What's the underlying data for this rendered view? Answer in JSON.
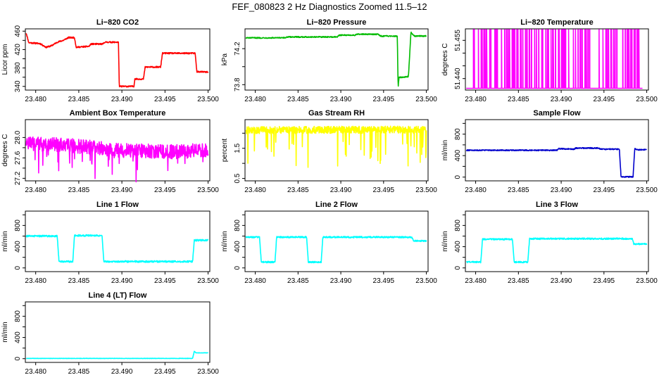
{
  "figure": {
    "title": "FEF_080823  2 Hz Diagnostics Zoomed 11.5–12"
  },
  "x_axis": {
    "ticks": [
      23.48,
      23.485,
      23.49,
      23.495,
      23.5
    ],
    "tick_labels": [
      "23.480",
      "23.485",
      "23.490",
      "23.495",
      "23.500"
    ],
    "xlim": [
      23.4788,
      23.5002
    ]
  },
  "chart_data": [
    {
      "type": "line",
      "title": "Li−820 CO2",
      "ylabel": "Licor ppm",
      "color": "#ff0000",
      "ylim": [
        332,
        465
      ],
      "y_ticks": [
        340,
        360,
        380,
        400,
        420,
        440,
        460
      ],
      "y_tick_labels": [
        "340",
        "",
        "380",
        "",
        "420",
        "",
        "460"
      ],
      "noise": 1.5,
      "points": [
        [
          23.4789,
          456
        ],
        [
          23.4792,
          435
        ],
        [
          23.4805,
          433
        ],
        [
          23.4812,
          425
        ],
        [
          23.4818,
          428
        ],
        [
          23.4825,
          436
        ],
        [
          23.4832,
          440
        ],
        [
          23.4838,
          446
        ],
        [
          23.4845,
          446
        ],
        [
          23.4847,
          425
        ],
        [
          23.4862,
          427
        ],
        [
          23.4864,
          432
        ],
        [
          23.4878,
          432
        ],
        [
          23.488,
          436
        ],
        [
          23.4896,
          436
        ],
        [
          23.4897,
          340
        ],
        [
          23.4914,
          340
        ],
        [
          23.4915,
          356
        ],
        [
          23.4925,
          356
        ],
        [
          23.4927,
          382
        ],
        [
          23.4945,
          382
        ],
        [
          23.4947,
          412
        ],
        [
          23.497,
          412
        ],
        [
          23.4985,
          412
        ],
        [
          23.4987,
          372
        ],
        [
          23.5,
          371
        ]
      ]
    },
    {
      "type": "line",
      "title": "Li−820 Pressure",
      "ylabel": "kPa",
      "color": "#00bb00",
      "ylim": [
        73.74,
        74.42
      ],
      "y_ticks": [
        73.8,
        74.0,
        74.2
      ],
      "y_tick_labels": [
        "73.8",
        "",
        "74.2"
      ],
      "noise": 0.006,
      "points": [
        [
          23.4789,
          74.32
        ],
        [
          23.4835,
          74.32
        ],
        [
          23.4837,
          74.33
        ],
        [
          23.4896,
          74.33
        ],
        [
          23.4898,
          74.35
        ],
        [
          23.4917,
          74.35
        ],
        [
          23.4919,
          74.36
        ],
        [
          23.4944,
          74.36
        ],
        [
          23.4946,
          74.34
        ],
        [
          23.4966,
          74.34
        ],
        [
          23.4967,
          73.77
        ],
        [
          23.4968,
          73.88
        ],
        [
          23.4979,
          73.89
        ],
        [
          23.4982,
          74.38
        ],
        [
          23.4986,
          74.34
        ],
        [
          23.5,
          74.34
        ]
      ]
    },
    {
      "type": "line",
      "title": "Li−820 Temperature",
      "ylabel": "degrees C",
      "color": "#ff00ff",
      "ylim": [
        51.4355,
        51.4595
      ],
      "y_ticks": [
        51.44,
        51.445,
        51.45,
        51.455
      ],
      "y_tick_labels": [
        "51.440",
        "",
        "",
        "51.455"
      ],
      "noise": 0,
      "points": [
        [
          23.4789,
          51.4362
        ]
      ],
      "spikes": {
        "count": 110,
        "low": 51.4362,
        "high": 51.4592,
        "seed": 31
      }
    },
    {
      "type": "line",
      "title": "Ambient Box Temperature",
      "ylabel": "degrees C",
      "color": "#ff00ff",
      "ylim": [
        27.15,
        28.35
      ],
      "y_ticks": [
        27.2,
        27.4,
        27.6,
        27.8,
        28.0
      ],
      "y_tick_labels": [
        "27.2",
        "",
        "27.6",
        "",
        "28.0"
      ],
      "noise": 0.14,
      "points": [
        [
          23.4789,
          27.88
        ],
        [
          23.4835,
          27.85
        ],
        [
          23.49,
          27.75
        ],
        [
          23.4955,
          27.72
        ],
        [
          23.5,
          27.75
        ]
      ],
      "dips": {
        "count": 30,
        "depth": 0.5,
        "seed": 7
      }
    },
    {
      "type": "line",
      "title": "Gas Stream RH",
      "ylabel": "percent",
      "color": "#ffff00",
      "ylim": [
        0.42,
        2.45
      ],
      "y_ticks": [
        0.5,
        1.0,
        1.5,
        2.0
      ],
      "y_tick_labels": [
        "0.5",
        "",
        "1.5",
        ""
      ],
      "noise": 0.12,
      "points": [
        [
          23.4789,
          2.1
        ],
        [
          23.5,
          2.12
        ]
      ],
      "dips": {
        "count": 40,
        "depth": 1.2,
        "seed": 13
      }
    },
    {
      "type": "line",
      "title": "Sample Flow",
      "ylabel": "ml/min",
      "color": "#0000cc",
      "ylim": [
        -70,
        1070
      ],
      "y_ticks": [
        0,
        200,
        400,
        600,
        800,
        1000
      ],
      "y_tick_labels": [
        "0",
        "",
        "400",
        "",
        "800",
        ""
      ],
      "noise": 10,
      "points": [
        [
          23.4789,
          500
        ],
        [
          23.4895,
          500
        ],
        [
          23.4897,
          530
        ],
        [
          23.4915,
          520
        ],
        [
          23.4917,
          540
        ],
        [
          23.4944,
          540
        ],
        [
          23.4946,
          520
        ],
        [
          23.4968,
          520
        ],
        [
          23.497,
          5
        ],
        [
          23.4984,
          5
        ],
        [
          23.4986,
          530
        ],
        [
          23.4988,
          510
        ],
        [
          23.5,
          510
        ]
      ]
    },
    {
      "type": "line",
      "title": "Line 1 Flow",
      "ylabel": "ml/min",
      "color": "#00ffff",
      "ylim": [
        -70,
        1070
      ],
      "y_ticks": [
        0,
        200,
        400,
        600,
        800,
        1000
      ],
      "y_tick_labels": [
        "0",
        "",
        "400",
        "",
        "800",
        ""
      ],
      "noise": 16,
      "points": [
        [
          23.4789,
          600
        ],
        [
          23.4825,
          600
        ],
        [
          23.4827,
          120
        ],
        [
          23.4843,
          120
        ],
        [
          23.4845,
          610
        ],
        [
          23.4877,
          610
        ],
        [
          23.4879,
          120
        ],
        [
          23.4982,
          120
        ],
        [
          23.4984,
          520
        ],
        [
          23.5,
          520
        ]
      ]
    },
    {
      "type": "line",
      "title": "Line 2 Flow",
      "ylabel": "ml/min",
      "color": "#00ffff",
      "ylim": [
        -70,
        1070
      ],
      "y_ticks": [
        0,
        200,
        400,
        600,
        800,
        1000
      ],
      "y_tick_labels": [
        "0",
        "",
        "400",
        "",
        "800",
        ""
      ],
      "noise": 14,
      "points": [
        [
          23.4789,
          580
        ],
        [
          23.4805,
          580
        ],
        [
          23.4807,
          110
        ],
        [
          23.4823,
          110
        ],
        [
          23.4825,
          580
        ],
        [
          23.486,
          580
        ],
        [
          23.4862,
          110
        ],
        [
          23.4877,
          110
        ],
        [
          23.4879,
          580
        ],
        [
          23.4983,
          580
        ],
        [
          23.4985,
          510
        ],
        [
          23.5,
          510
        ]
      ]
    },
    {
      "type": "line",
      "title": "Line 3 Flow",
      "ylabel": "ml/min",
      "color": "#00ffff",
      "ylim": [
        -70,
        1070
      ],
      "y_ticks": [
        0,
        200,
        400,
        600,
        800,
        1000
      ],
      "y_tick_labels": [
        "0",
        "",
        "400",
        "",
        "800",
        ""
      ],
      "noise": 14,
      "points": [
        [
          23.4789,
          110
        ],
        [
          23.4806,
          110
        ],
        [
          23.4808,
          540
        ],
        [
          23.4843,
          540
        ],
        [
          23.4845,
          110
        ],
        [
          23.4861,
          110
        ],
        [
          23.4863,
          550
        ],
        [
          23.4983,
          550
        ],
        [
          23.4985,
          450
        ],
        [
          23.5,
          450
        ]
      ]
    },
    {
      "type": "line",
      "title": "Line 4 (LT) Flow",
      "ylabel": "ml/min",
      "color": "#00ffff",
      "ylim": [
        -70,
        1070
      ],
      "y_ticks": [
        0,
        200,
        400,
        600,
        800,
        1000
      ],
      "y_tick_labels": [
        "0",
        "",
        "400",
        "",
        "800",
        ""
      ],
      "noise": 3,
      "points": [
        [
          23.4789,
          5
        ],
        [
          23.4982,
          5
        ],
        [
          23.4984,
          140
        ],
        [
          23.4986,
          110
        ],
        [
          23.5,
          110
        ]
      ]
    }
  ]
}
